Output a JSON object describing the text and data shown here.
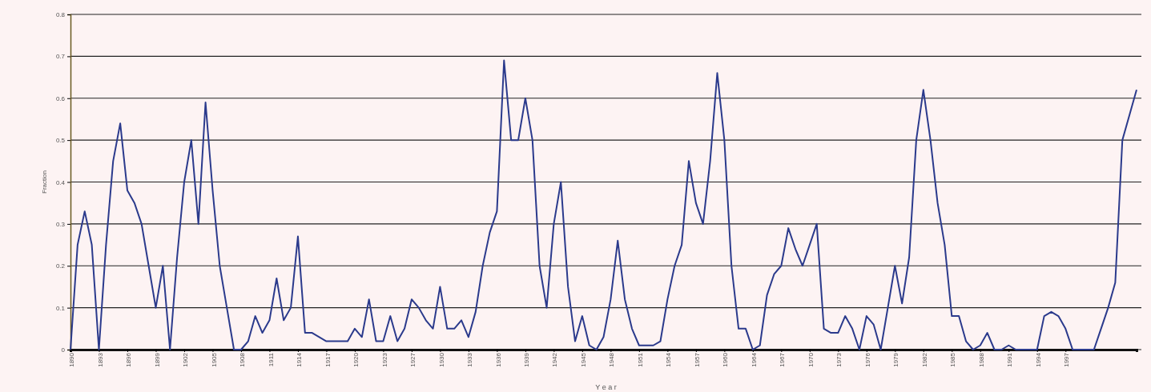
{
  "chart_data": {
    "type": "line",
    "xlabel": "Y e a r",
    "ylabel": "Fraction",
    "categories": [
      "1890",
      null,
      null,
      null,
      "1893",
      null,
      null,
      null,
      "1896",
      null,
      null,
      null,
      "1899",
      null,
      null,
      null,
      "1902",
      null,
      null,
      null,
      "1905",
      null,
      null,
      null,
      "1908",
      null,
      null,
      null,
      "1911",
      null,
      null,
      null,
      "1914",
      null,
      null,
      null,
      "1917",
      null,
      null,
      null,
      "1920",
      null,
      null,
      null,
      "1923",
      null,
      null,
      null,
      "1927",
      null,
      null,
      null,
      "1930",
      null,
      null,
      null,
      "1933",
      null,
      null,
      null,
      "1936",
      null,
      null,
      null,
      "1939",
      null,
      null,
      null,
      "1942",
      null,
      null,
      null,
      "1945",
      null,
      null,
      null,
      "1948",
      null,
      null,
      null,
      "1951",
      null,
      null,
      null,
      "1954",
      null,
      null,
      null,
      "1957",
      null,
      null,
      null,
      "1960",
      null,
      null,
      null,
      "1964",
      null,
      null,
      null,
      "1967",
      null,
      null,
      null,
      "1970",
      null,
      null,
      null,
      "1973",
      null,
      null,
      null,
      "1976",
      null,
      null,
      null,
      "1979",
      null,
      null,
      null,
      "1982",
      null,
      null,
      null,
      "1985",
      null,
      null,
      null,
      "1988",
      null,
      null,
      null,
      "1991",
      null,
      null,
      null,
      "1994",
      null,
      null,
      null,
      "1997",
      null,
      null,
      null,
      null,
      null,
      null,
      null,
      null,
      null,
      null
    ],
    "series": [
      {
        "color": "#2b3a8c",
        "values": [
          0,
          0.25,
          0.33,
          0.25,
          0,
          0.25,
          0.45,
          0.54,
          0.38,
          0.35,
          0.3,
          0.2,
          0.1,
          0.2,
          0,
          0.22,
          0.4,
          0.5,
          0.3,
          0.59,
          0.38,
          0.2,
          0.1,
          0,
          0,
          0.02,
          0.08,
          0.04,
          0.07,
          0.17,
          0.07,
          0.1,
          0.27,
          0.04,
          0.04,
          0.03,
          0.02,
          0.02,
          0.02,
          0.02,
          0.05,
          0.03,
          0.12,
          0.02,
          0.02,
          0.08,
          0.02,
          0.05,
          0.12,
          0.1,
          0.07,
          0.05,
          0.15,
          0.05,
          0.05,
          0.07,
          0.03,
          0.09,
          0.2,
          0.28,
          0.33,
          0.69,
          0.5,
          0.5,
          0.6,
          0.5,
          0.2,
          0.1,
          0.3,
          0.4,
          0.15,
          0.02,
          0.08,
          0.01,
          0,
          0.03,
          0.12,
          0.26,
          0.12,
          0.05,
          0.01,
          0.01,
          0.01,
          0.02,
          0.12,
          0.2,
          0.25,
          0.45,
          0.35,
          0.3,
          0.45,
          0.66,
          0.5,
          0.2,
          0.05,
          0.05,
          0,
          0.01,
          0.13,
          0.18,
          0.2,
          0.29,
          0.24,
          0.2,
          0.25,
          0.3,
          0.05,
          0.04,
          0.04,
          0.08,
          0.05,
          0,
          0.08,
          0.06,
          0,
          0.1,
          0.2,
          0.11,
          0.22,
          0.5,
          0.62,
          0.5,
          0.35,
          0.25,
          0.08,
          0.08,
          0.02,
          0,
          0.01,
          0.04,
          0,
          0,
          0.01,
          0,
          0,
          0,
          0,
          0.08,
          0.09,
          0.08,
          0.05,
          0,
          0,
          0,
          0,
          0.05,
          0.1,
          0.16,
          0.5,
          0.56,
          0.62
        ]
      }
    ],
    "ylim": [
      0,
      0.8
    ],
    "yticks": [
      0,
      0.1,
      0.2,
      0.3,
      0.4,
      0.5,
      0.6,
      0.7,
      0.8
    ],
    "grid": "y",
    "marker": "none",
    "line_style": "solid"
  }
}
